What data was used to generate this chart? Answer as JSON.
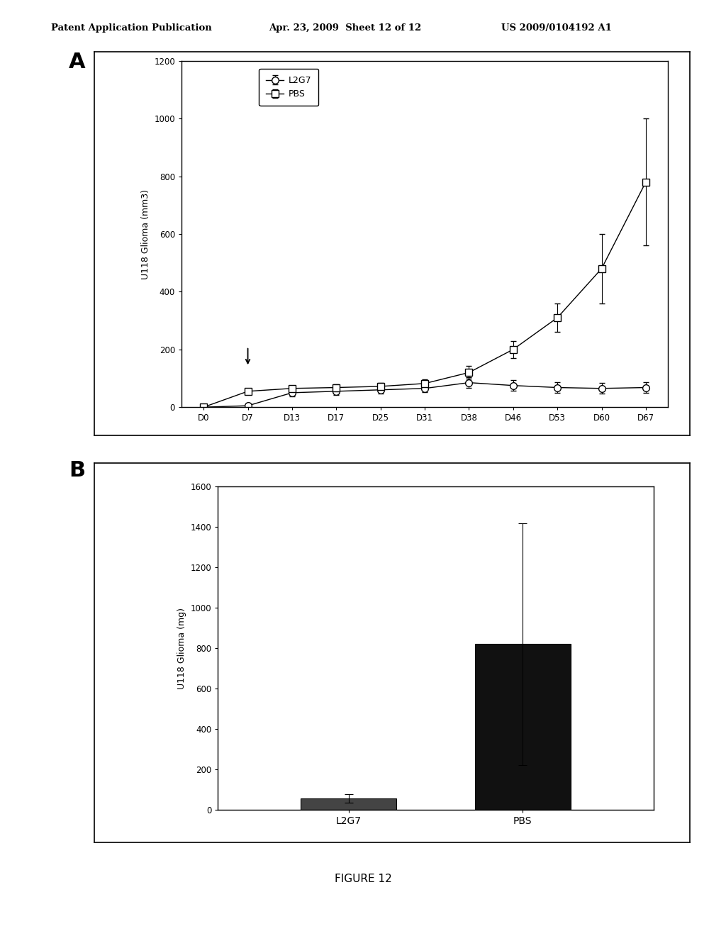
{
  "header_left": "Patent Application Publication",
  "header_mid": "Apr. 23, 2009  Sheet 12 of 12",
  "header_right": "US 2009/0104192 A1",
  "figure_label": "FIGURE 12",
  "panel_A": {
    "label": "A",
    "ylabel": "U118 Glioma (mm3)",
    "ylim": [
      0,
      1200
    ],
    "yticks": [
      0,
      200,
      400,
      600,
      800,
      1000,
      1200
    ],
    "xticklabels": [
      "D0",
      "D7",
      "D13",
      "D17",
      "D25",
      "D31",
      "D38",
      "D46",
      "D53",
      "D60",
      "D67"
    ],
    "L2G7_values": [
      0,
      5,
      50,
      55,
      60,
      65,
      85,
      75,
      68,
      65,
      68
    ],
    "L2G7_errors": [
      0,
      5,
      12,
      12,
      12,
      12,
      18,
      18,
      18,
      18,
      18
    ],
    "PBS_values": [
      0,
      55,
      65,
      68,
      72,
      82,
      120,
      200,
      310,
      480,
      780
    ],
    "PBS_errors": [
      0,
      10,
      10,
      12,
      12,
      15,
      22,
      30,
      50,
      120,
      220
    ],
    "legend_entries": [
      "L2G7",
      "PBS"
    ]
  },
  "panel_B": {
    "label": "B",
    "ylabel": "U118 Glioma (mg)",
    "ylim": [
      0,
      1600
    ],
    "yticks": [
      0,
      200,
      400,
      600,
      800,
      1000,
      1200,
      1400,
      1600
    ],
    "categories": [
      "L2G7",
      "PBS"
    ],
    "values": [
      55,
      820
    ],
    "errors": [
      20,
      600
    ],
    "bar_colors": [
      "#444444",
      "#111111"
    ]
  },
  "background_color": "#ffffff",
  "border_color": "#000000"
}
